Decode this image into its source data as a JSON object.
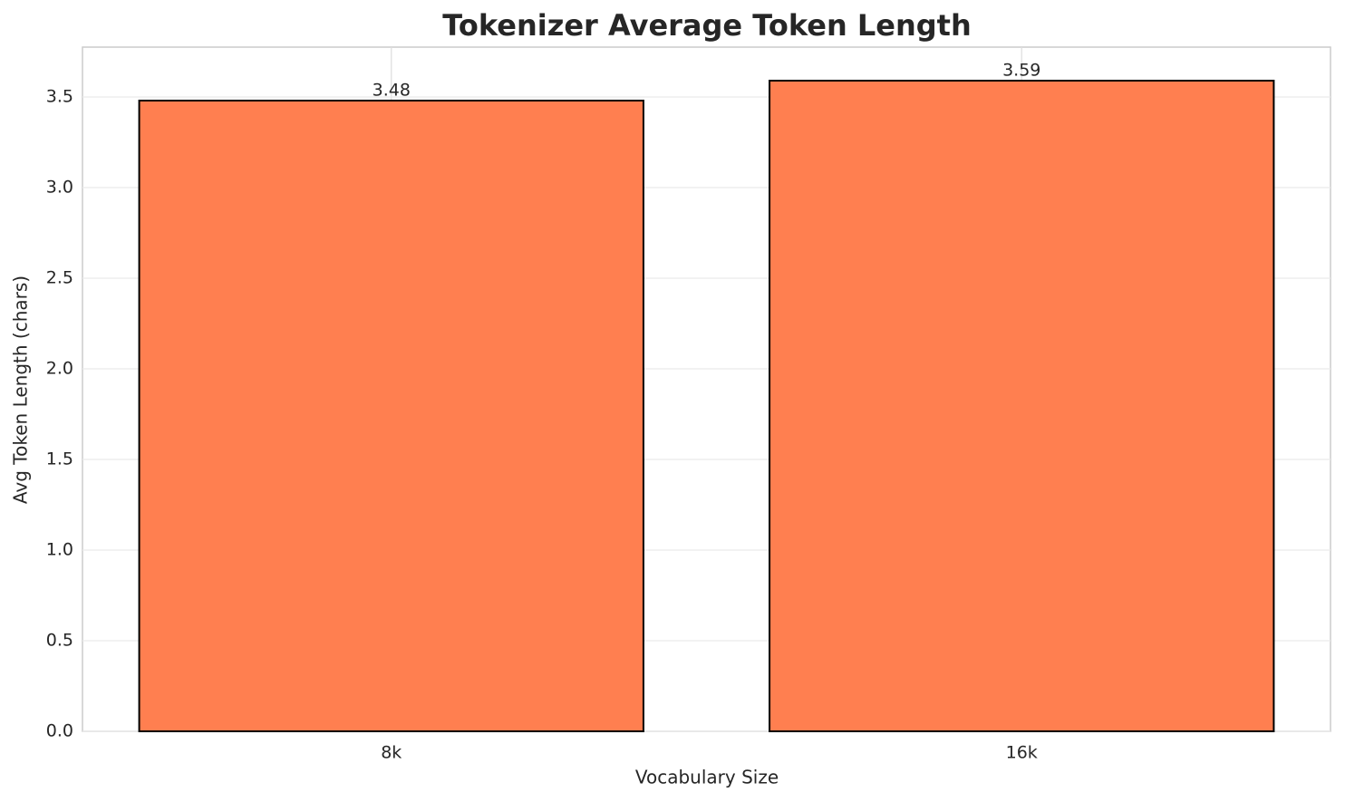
{
  "chart_data": {
    "type": "bar",
    "title": "Tokenizer Average Token Length",
    "x_label": "Vocabulary Size",
    "y_label": "Avg Token Length (chars)",
    "categories": [
      "8k",
      "16k"
    ],
    "values": [
      3.48,
      3.59
    ],
    "color": "#ff7f50",
    "ylim": [
      0,
      3.775
    ],
    "yticks": [
      {
        "value": 0,
        "label": "0.0"
      },
      0.5,
      {
        "value": 1,
        "label": "1.0"
      },
      1.5,
      {
        "value": 2,
        "label": "2.0"
      },
      2.5,
      {
        "value": 3,
        "label": "3.0"
      },
      3.5
    ],
    "grid": true
  }
}
